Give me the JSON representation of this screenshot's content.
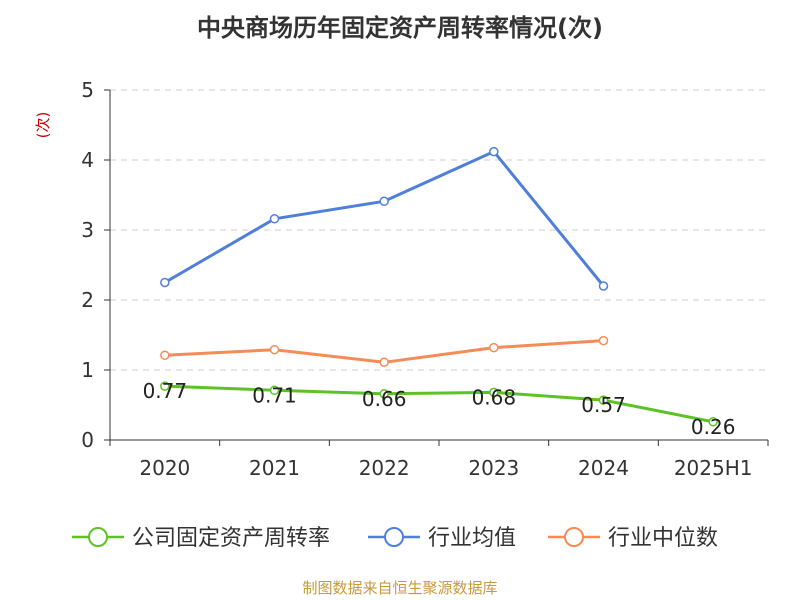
{
  "chart_data": {
    "type": "line",
    "title": "中央商场历年固定资产周转率情况(次)",
    "ylabel": "(次)",
    "xlabel": "",
    "categories": [
      "2020",
      "2021",
      "2022",
      "2023",
      "2024",
      "2025H1"
    ],
    "ylim": [
      0,
      5
    ],
    "yticks": [
      "0",
      "1",
      "2",
      "3",
      "4",
      "5"
    ],
    "grid": true,
    "legend_position": "bottom",
    "series": [
      {
        "name": "公司固定资产周转率",
        "color": "#5cc227",
        "values": [
          0.77,
          0.71,
          0.66,
          0.68,
          0.57,
          0.26
        ],
        "labels": [
          "0.77",
          "0.71",
          "0.66",
          "0.68",
          "0.57",
          "0.26"
        ]
      },
      {
        "name": "行业均值",
        "color": "#4f7fdb",
        "values": [
          2.25,
          3.16,
          3.41,
          4.12,
          2.2,
          null
        ]
      },
      {
        "name": "行业中位数",
        "color": "#f58b57",
        "values": [
          1.21,
          1.29,
          1.11,
          1.32,
          1.42,
          null
        ]
      }
    ]
  },
  "footer": "制图数据来自恒生聚源数据库",
  "colors": {
    "axis_label": "#cc0000",
    "source": "#c79a3c"
  }
}
